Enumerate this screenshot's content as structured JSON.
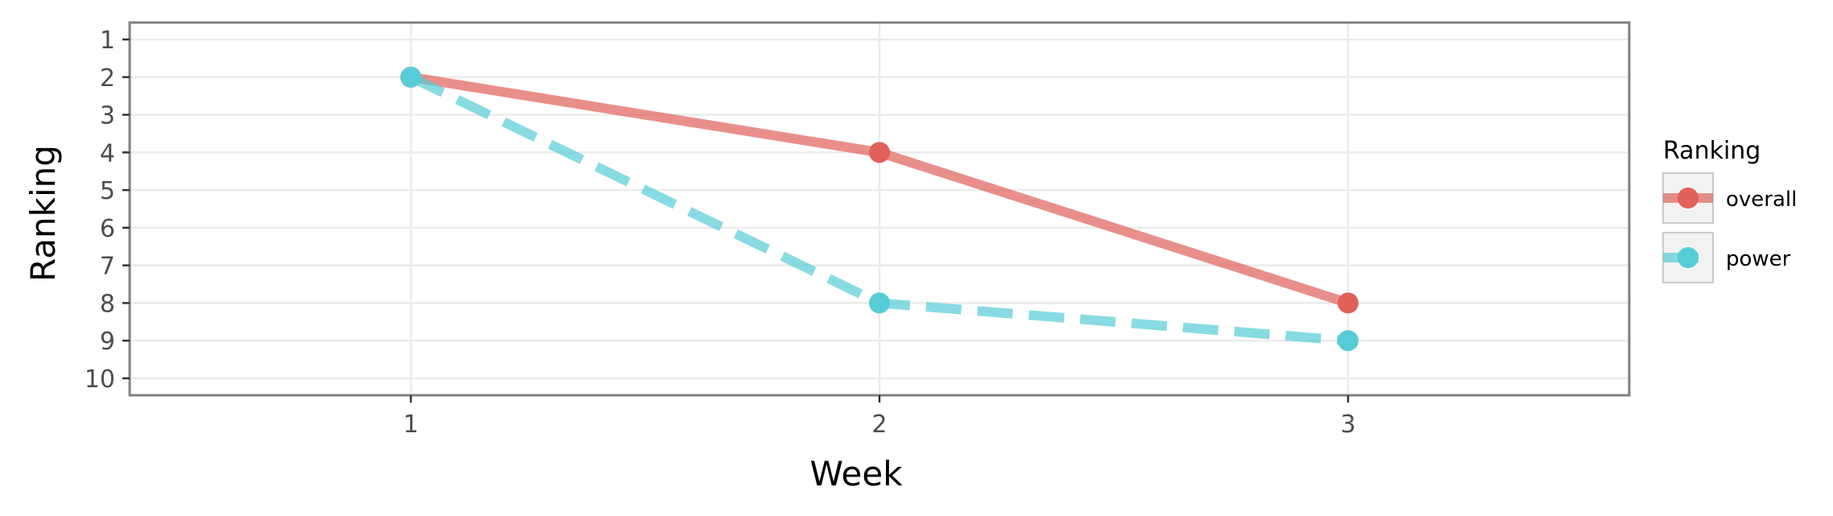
{
  "chart_data": {
    "type": "line",
    "xlabel": "Week",
    "ylabel": "Ranking",
    "x": [
      1,
      2,
      3
    ],
    "xlim": [
      0.4,
      3.6
    ],
    "ylim": [
      10.45,
      0.55
    ],
    "y_reversed": true,
    "x_ticks": [
      "1",
      "2",
      "3"
    ],
    "y_ticks": [
      "1",
      "2",
      "3",
      "4",
      "5",
      "6",
      "7",
      "8",
      "9",
      "10"
    ],
    "grid": true,
    "legend": {
      "title": "Ranking",
      "placement": "right"
    },
    "series": [
      {
        "name": "overall",
        "values": [
          2,
          4,
          8
        ],
        "color": "#e0605a",
        "line_style": "solid"
      },
      {
        "name": "power",
        "values": [
          2,
          8,
          9
        ],
        "color": "#56ccd6",
        "line_style": "dashed"
      }
    ]
  }
}
